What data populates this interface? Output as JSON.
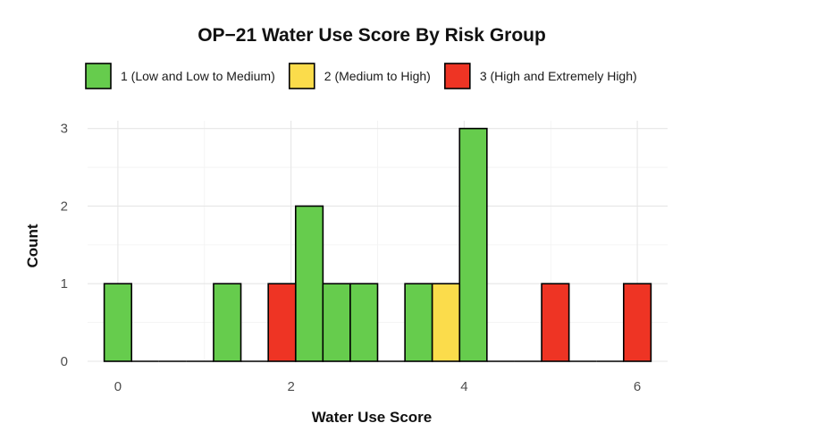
{
  "chart_data": {
    "type": "bar",
    "subtype": "stacked-histogram",
    "title": "OP−21 Water Use Score By Risk Group",
    "xlabel": "Water Use Score",
    "ylabel": "Count",
    "xlim": [
      -0.35,
      6.35
    ],
    "ylim": [
      0,
      3.1
    ],
    "x_ticks": [
      0,
      2,
      4,
      6
    ],
    "y_ticks": [
      0,
      1,
      2,
      3
    ],
    "bin_width": 0.3158,
    "grid": true,
    "legend_position": "top",
    "series": [
      {
        "name": "1 (Low and Low to Medium)",
        "color": "#66cc4d",
        "bins": [
          {
            "x": 0.0,
            "count": 1
          },
          {
            "x": 1.263,
            "count": 1
          },
          {
            "x": 2.211,
            "count": 2
          },
          {
            "x": 2.526,
            "count": 1
          },
          {
            "x": 2.842,
            "count": 1
          },
          {
            "x": 3.474,
            "count": 1
          },
          {
            "x": 4.105,
            "count": 3
          }
        ]
      },
      {
        "name": "2 (Medium to High)",
        "color": "#fbdc4b",
        "bins": [
          {
            "x": 3.789,
            "count": 1
          }
        ]
      },
      {
        "name": "3 (High and Extremely High)",
        "color": "#ee3424",
        "bins": [
          {
            "x": 1.895,
            "count": 1
          },
          {
            "x": 5.053,
            "count": 1
          },
          {
            "x": 6.0,
            "count": 1
          }
        ]
      }
    ]
  }
}
